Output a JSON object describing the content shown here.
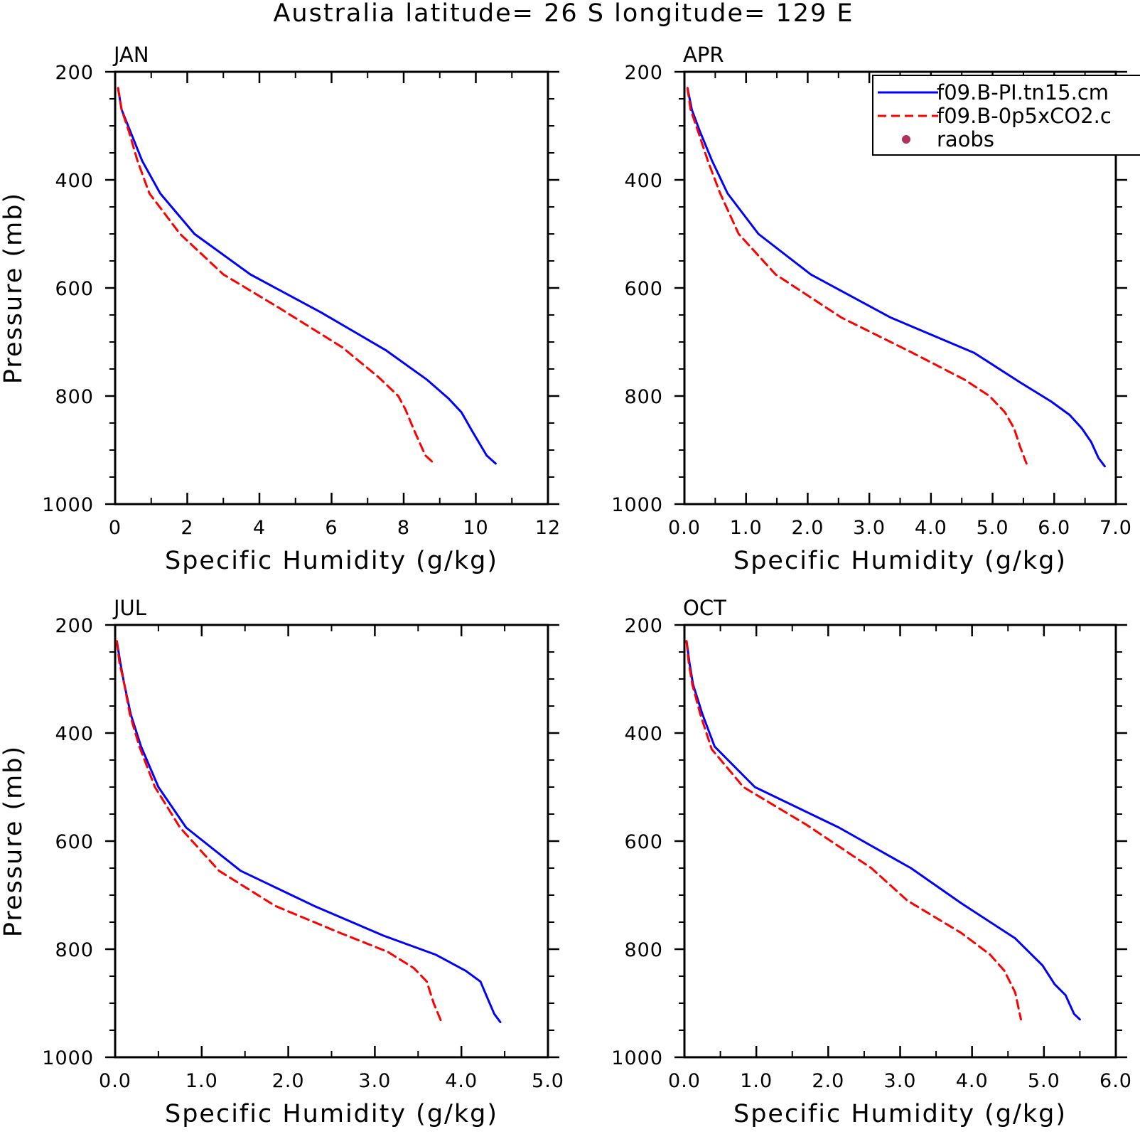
{
  "figure": {
    "title": "Australia  latitude= 26 S longitude= 129 E"
  },
  "legend": {
    "entries": [
      {
        "label": "f09.B-PI.tn15.cm",
        "style": "solid",
        "color": "#0000ff"
      },
      {
        "label": "f09.B-0p5xCO2.c",
        "style": "dashed",
        "color": "#ff0000"
      },
      {
        "label": "raobs",
        "style": "dot",
        "color": "#b0305a"
      }
    ]
  },
  "colors": {
    "series_1": "#0000ff",
    "series_2": "#ff0000",
    "raobs": "#b0305a",
    "axes": "#000000",
    "background": "#ffffff"
  },
  "chart_data": [
    {
      "type": "line",
      "panel": "JAN",
      "xlabel": "Specific Humidity (g/kg)",
      "ylabel": "Pressure (mb)",
      "xlim": [
        0,
        12
      ],
      "xticks": [
        "0",
        "2",
        "4",
        "6",
        "8",
        "10",
        "12"
      ],
      "ylim": [
        1000,
        200
      ],
      "yticks": [
        "200",
        "400",
        "600",
        "800",
        "1000"
      ],
      "grid": false,
      "series": [
        {
          "name": "f09.B-PI.tn15.cm",
          "color": "#0000ff",
          "dash": false,
          "x": [
            0.08,
            0.18,
            0.42,
            0.75,
            1.25,
            2.2,
            3.75,
            5.7,
            7.5,
            8.65,
            9.25,
            9.6,
            9.9,
            10.3,
            10.55
          ],
          "y": [
            230,
            270,
            310,
            365,
            425,
            500,
            575,
            645,
            715,
            770,
            805,
            830,
            865,
            910,
            925
          ]
        },
        {
          "name": "f09.B-0p5xCO2.c",
          "color": "#ff0000",
          "dash": true,
          "x": [
            0.08,
            0.18,
            0.38,
            0.62,
            0.95,
            1.8,
            3.0,
            4.5,
            6.3,
            7.3,
            7.85,
            8.05,
            8.3,
            8.6,
            8.85
          ],
          "y": [
            230,
            270,
            310,
            365,
            425,
            500,
            575,
            635,
            710,
            765,
            800,
            825,
            865,
            910,
            925
          ]
        }
      ]
    },
    {
      "type": "line",
      "panel": "APR",
      "xlabel": "Specific Humidity (g/kg)",
      "ylabel": "",
      "xlim": [
        0,
        7
      ],
      "xticks": [
        "0.0",
        "1.0",
        "2.0",
        "3.0",
        "4.0",
        "5.0",
        "6.0",
        "7.0"
      ],
      "ylim": [
        1000,
        200
      ],
      "yticks": [
        "200",
        "400",
        "600",
        "800",
        "1000"
      ],
      "grid": false,
      "series": [
        {
          "name": "f09.B-PI.tn15.cm",
          "color": "#0000ff",
          "dash": false,
          "x": [
            0.05,
            0.12,
            0.25,
            0.45,
            0.7,
            1.2,
            2.05,
            3.35,
            4.7,
            5.45,
            5.95,
            6.25,
            6.45,
            6.6,
            6.72,
            6.82
          ],
          "y": [
            230,
            270,
            310,
            365,
            425,
            500,
            575,
            655,
            720,
            775,
            810,
            835,
            860,
            885,
            915,
            930
          ]
        },
        {
          "name": "f09.B-0p5xCO2.c",
          "color": "#ff0000",
          "dash": true,
          "x": [
            0.05,
            0.1,
            0.22,
            0.38,
            0.58,
            0.88,
            1.48,
            2.55,
            3.7,
            4.55,
            4.95,
            5.2,
            5.35,
            5.45,
            5.55
          ],
          "y": [
            230,
            270,
            310,
            365,
            425,
            500,
            575,
            655,
            720,
            770,
            800,
            830,
            860,
            895,
            925
          ]
        }
      ]
    },
    {
      "type": "line",
      "panel": "JUL",
      "xlabel": "Specific Humidity (g/kg)",
      "ylabel": "Pressure (mb)",
      "xlim": [
        0,
        5
      ],
      "xticks": [
        "0.0",
        "1.0",
        "2.0",
        "3.0",
        "4.0",
        "5.0"
      ],
      "ylim": [
        1000,
        200
      ],
      "yticks": [
        "200",
        "400",
        "600",
        "800",
        "1000"
      ],
      "grid": false,
      "series": [
        {
          "name": "f09.B-PI.tn15.cm",
          "color": "#0000ff",
          "dash": false,
          "x": [
            0.02,
            0.06,
            0.1,
            0.18,
            0.3,
            0.5,
            0.82,
            1.45,
            2.3,
            3.1,
            3.7,
            4.05,
            4.22,
            4.3,
            4.38,
            4.45
          ],
          "y": [
            230,
            270,
            305,
            365,
            425,
            500,
            575,
            655,
            720,
            775,
            810,
            840,
            860,
            890,
            920,
            935
          ]
        },
        {
          "name": "f09.B-0p5xCO2.c",
          "color": "#ff0000",
          "dash": true,
          "x": [
            0.02,
            0.05,
            0.1,
            0.17,
            0.28,
            0.46,
            0.75,
            1.2,
            1.85,
            2.6,
            3.15,
            3.45,
            3.6,
            3.68,
            3.77
          ],
          "y": [
            230,
            270,
            305,
            365,
            425,
            500,
            575,
            655,
            720,
            770,
            805,
            835,
            860,
            900,
            935
          ]
        }
      ]
    },
    {
      "type": "line",
      "panel": "OCT",
      "xlabel": "Specific Humidity (g/kg)",
      "ylabel": "",
      "xlim": [
        0,
        6
      ],
      "xticks": [
        "0.0",
        "1.0",
        "2.0",
        "3.0",
        "4.0",
        "5.0",
        "6.0"
      ],
      "ylim": [
        1000,
        200
      ],
      "yticks": [
        "200",
        "400",
        "600",
        "800",
        "1000"
      ],
      "grid": false,
      "series": [
        {
          "name": "f09.B-PI.tn15.cm",
          "color": "#0000ff",
          "dash": false,
          "x": [
            0.03,
            0.07,
            0.12,
            0.25,
            0.42,
            0.98,
            2.15,
            3.15,
            3.85,
            4.6,
            4.98,
            5.15,
            5.3,
            5.42,
            5.5
          ],
          "y": [
            230,
            270,
            310,
            365,
            425,
            500,
            575,
            650,
            715,
            780,
            830,
            865,
            885,
            920,
            930
          ]
        },
        {
          "name": "f09.B-0p5xCO2.c",
          "color": "#ff0000",
          "dash": true,
          "x": [
            0.03,
            0.06,
            0.11,
            0.22,
            0.38,
            0.82,
            1.7,
            2.6,
            3.1,
            3.85,
            4.25,
            4.45,
            4.6,
            4.68
          ],
          "y": [
            230,
            270,
            310,
            365,
            430,
            500,
            570,
            650,
            710,
            770,
            810,
            840,
            880,
            930
          ]
        }
      ]
    }
  ]
}
